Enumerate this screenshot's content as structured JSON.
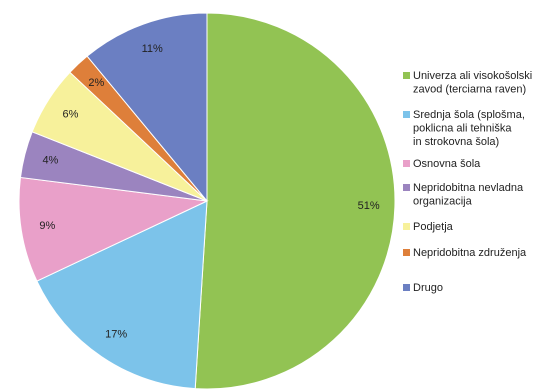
{
  "chart_data": {
    "type": "pie",
    "categories": [
      "Univerza ali visokošolski zavod (terciarna raven)",
      "Srednja šola (splošma, poklicna ali tehniška in strokovna šola)",
      "Osnovna šola",
      "Nepridobitna nevladna organizacija",
      "Podjetja",
      "Nepridobitna združenja",
      "Drugo"
    ],
    "legend_lines": [
      [
        "Univerza ali visokošolski",
        "zavod (terciarna raven)"
      ],
      [
        "Srednja šola (splošma,",
        "poklicna ali tehniška",
        "in strokovna šola)"
      ],
      [
        "Osnovna šola"
      ],
      [
        "Nepridobitna nevladna",
        "organizacija"
      ],
      [
        "Podjetja"
      ],
      [
        "Nepridobitna združenja"
      ],
      [
        "Drugo"
      ]
    ],
    "values": [
      51,
      17,
      9,
      4,
      6,
      2,
      11
    ],
    "labels": [
      "51%",
      "17%",
      "9%",
      "4%",
      "6%",
      "2%",
      "11%"
    ],
    "colors": [
      "#92c353",
      "#7cc3ea",
      "#e9a0c9",
      "#9b84bf",
      "#f7f19b",
      "#de7f3a",
      "#6b7fc2"
    ],
    "start": "12 o'clock",
    "direction": "clockwise",
    "legend_position": "right"
  }
}
